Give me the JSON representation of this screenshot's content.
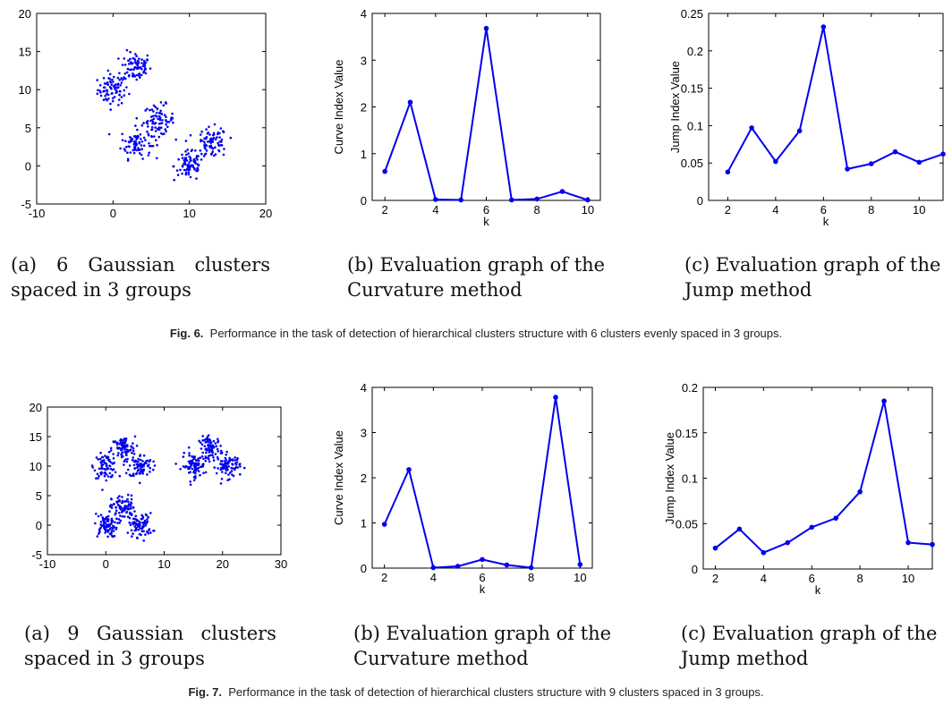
{
  "colors": {
    "series": "#0000ee",
    "axis": "#000000"
  },
  "figures": [
    {
      "label": "Fig. 6.",
      "caption": "Performance in the task of detection of hierarchical clusters structure with 6 clusters evenly spaced in 3 groups.",
      "subcaptions": [
        {
          "l1": [
            "(a)",
            "6",
            "Gaussian",
            "clusters"
          ],
          "l2": "spaced in 3 groups"
        },
        {
          "l1": [
            "(b) Evaluation graph of the"
          ],
          "l2": "Curvature method"
        },
        {
          "l1": [
            "(c) Evaluation graph of the"
          ],
          "l2": "Jump method"
        }
      ]
    },
    {
      "label": "Fig. 7.",
      "caption": "Performance in the task of detection of hierarchical clusters structure with 9 clusters spaced in 3 groups.",
      "subcaptions": [
        {
          "l1": [
            "(a)",
            "9",
            "Gaussian",
            "clusters"
          ],
          "l2": "spaced in 3 groups"
        },
        {
          "l1": [
            "(b) Evaluation graph of the"
          ],
          "l2": "Curvature method"
        },
        {
          "l1": [
            "(c) Evaluation graph of the"
          ],
          "l2": "Jump method"
        }
      ]
    }
  ],
  "chart_data": [
    {
      "id": "fig6a",
      "type": "scatter",
      "xlim": [
        -10,
        20
      ],
      "ylim": [
        -5,
        20
      ],
      "xticks": [
        -10,
        0,
        10,
        20
      ],
      "yticks": [
        -5,
        0,
        5,
        10,
        15,
        20
      ],
      "clusters": [
        {
          "center": [
            0,
            10
          ],
          "spread": 1.0,
          "n": 80
        },
        {
          "center": [
            3,
            13
          ],
          "spread": 1.0,
          "n": 80
        },
        {
          "center": [
            3,
            3
          ],
          "spread": 1.0,
          "n": 80
        },
        {
          "center": [
            6,
            6
          ],
          "spread": 1.0,
          "n": 80
        },
        {
          "center": [
            10,
            0
          ],
          "spread": 1.0,
          "n": 80
        },
        {
          "center": [
            13,
            3
          ],
          "spread": 1.0,
          "n": 80
        }
      ]
    },
    {
      "id": "fig6b",
      "type": "line",
      "xlabel": "k",
      "ylabel": "Curve Index Value",
      "xlim": [
        1.5,
        10.5
      ],
      "ylim": [
        0,
        4
      ],
      "xticks": [
        2,
        4,
        6,
        8,
        10
      ],
      "yticks": [
        0,
        1,
        2,
        3,
        4
      ],
      "x": [
        2,
        3,
        4,
        5,
        6,
        7,
        8,
        9,
        10
      ],
      "y": [
        0.62,
        2.1,
        0.02,
        0.01,
        3.68,
        0.01,
        0.03,
        0.19,
        0.01
      ]
    },
    {
      "id": "fig6c",
      "type": "line",
      "xlabel": "k",
      "ylabel": "Jump Index Value",
      "xlim": [
        1.2,
        11
      ],
      "ylim": [
        0,
        0.25
      ],
      "xticks": [
        2,
        4,
        6,
        8,
        10
      ],
      "yticks": [
        0,
        0.05,
        0.1,
        0.15,
        0.2,
        0.25
      ],
      "x": [
        2,
        3,
        4,
        5,
        6,
        7,
        8,
        9,
        10,
        11
      ],
      "y": [
        0.038,
        0.097,
        0.052,
        0.093,
        0.232,
        0.042,
        0.049,
        0.065,
        0.051,
        0.062
      ]
    },
    {
      "id": "fig7a",
      "type": "scatter",
      "xlim": [
        -10,
        30
      ],
      "ylim": [
        -5,
        20
      ],
      "xticks": [
        -10,
        0,
        10,
        20,
        30
      ],
      "yticks": [
        -5,
        0,
        5,
        10,
        15,
        20
      ],
      "clusters": [
        {
          "center": [
            0,
            10
          ],
          "spread": 1.0,
          "n": 80
        },
        {
          "center": [
            3,
            13
          ],
          "spread": 1.0,
          "n": 80
        },
        {
          "center": [
            6,
            10
          ],
          "spread": 1.0,
          "n": 80
        },
        {
          "center": [
            0,
            0
          ],
          "spread": 1.0,
          "n": 80
        },
        {
          "center": [
            3,
            3
          ],
          "spread": 1.0,
          "n": 80
        },
        {
          "center": [
            6,
            0
          ],
          "spread": 1.0,
          "n": 80
        },
        {
          "center": [
            15,
            10
          ],
          "spread": 1.0,
          "n": 80
        },
        {
          "center": [
            18,
            13
          ],
          "spread": 1.0,
          "n": 80
        },
        {
          "center": [
            21,
            10
          ],
          "spread": 1.0,
          "n": 80
        }
      ]
    },
    {
      "id": "fig7b",
      "type": "line",
      "xlabel": "k",
      "ylabel": "Curve Index Value",
      "xlim": [
        1.5,
        10.5
      ],
      "ylim": [
        0,
        4
      ],
      "xticks": [
        2,
        4,
        6,
        8,
        10
      ],
      "yticks": [
        0,
        1,
        2,
        3,
        4
      ],
      "x": [
        2,
        3,
        4,
        5,
        6,
        7,
        8,
        9,
        10
      ],
      "y": [
        0.97,
        2.18,
        0.01,
        0.04,
        0.19,
        0.07,
        0.01,
        3.78,
        0.08
      ]
    },
    {
      "id": "fig7c",
      "type": "line",
      "xlabel": "k",
      "ylabel": "Jump Index Value",
      "xlim": [
        1.5,
        11
      ],
      "ylim": [
        0,
        0.2
      ],
      "xticks": [
        2,
        4,
        6,
        8,
        10
      ],
      "yticks": [
        0,
        0.05,
        0.1,
        0.15,
        0.2
      ],
      "x": [
        2,
        3,
        4,
        5,
        6,
        7,
        8,
        9,
        10,
        11
      ],
      "y": [
        0.023,
        0.044,
        0.018,
        0.029,
        0.046,
        0.056,
        0.085,
        0.185,
        0.029,
        0.027
      ]
    }
  ]
}
